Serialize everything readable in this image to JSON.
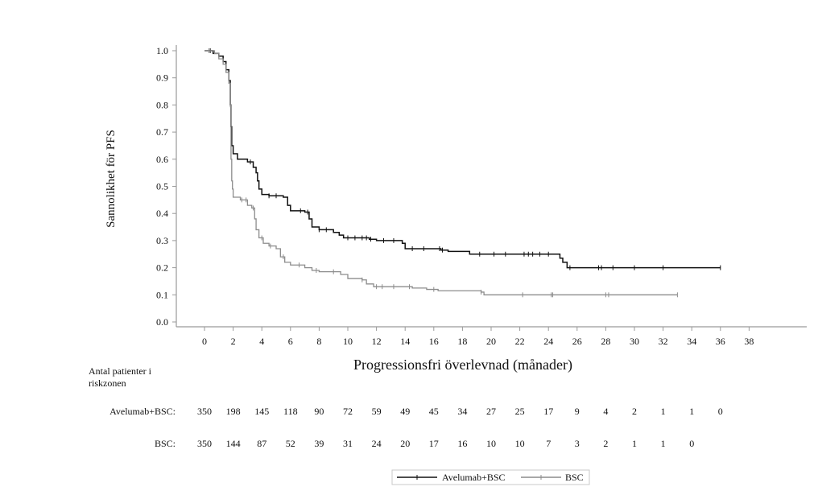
{
  "chart_data": {
    "type": "line",
    "subtype": "kaplan-meier",
    "title": "",
    "xlabel": "Progressionsfri överlevnad (månader)",
    "ylabel": "Sannolikhet för PFS",
    "xlim": [
      -2,
      42
    ],
    "ylim": [
      0,
      1.0
    ],
    "x_ticks": [
      0,
      2,
      4,
      6,
      8,
      10,
      12,
      14,
      16,
      18,
      20,
      22,
      24,
      26,
      28,
      30,
      32,
      34,
      36,
      38
    ],
    "y_ticks": [
      "0.0",
      "0.1",
      "0.2",
      "0.3",
      "0.4",
      "0.5",
      "0.6",
      "0.7",
      "0.8",
      "0.9",
      "1.0"
    ],
    "grid": false,
    "legend_position": "bottom-center",
    "series": [
      {
        "name": "Avelumab+BSC",
        "color": "#111111",
        "steps": [
          [
            0,
            1.0
          ],
          [
            0.6,
            0.99
          ],
          [
            1.0,
            0.98
          ],
          [
            1.3,
            0.96
          ],
          [
            1.5,
            0.93
          ],
          [
            1.7,
            0.89
          ],
          [
            1.8,
            0.8
          ],
          [
            1.85,
            0.72
          ],
          [
            1.9,
            0.65
          ],
          [
            2.0,
            0.62
          ],
          [
            2.3,
            0.6
          ],
          [
            3.0,
            0.59
          ],
          [
            3.4,
            0.57
          ],
          [
            3.6,
            0.55
          ],
          [
            3.7,
            0.52
          ],
          [
            3.8,
            0.49
          ],
          [
            4.0,
            0.47
          ],
          [
            4.5,
            0.465
          ],
          [
            5.5,
            0.46
          ],
          [
            5.8,
            0.43
          ],
          [
            6.0,
            0.41
          ],
          [
            7.0,
            0.405
          ],
          [
            7.3,
            0.38
          ],
          [
            7.5,
            0.35
          ],
          [
            8.0,
            0.34
          ],
          [
            9.0,
            0.33
          ],
          [
            9.4,
            0.32
          ],
          [
            9.7,
            0.31
          ],
          [
            11.5,
            0.305
          ],
          [
            12.0,
            0.3
          ],
          [
            13.8,
            0.29
          ],
          [
            14.0,
            0.27
          ],
          [
            16.5,
            0.265
          ],
          [
            17.0,
            0.26
          ],
          [
            18.5,
            0.25
          ],
          [
            24.8,
            0.235
          ],
          [
            25.0,
            0.22
          ],
          [
            25.3,
            0.2
          ],
          [
            36.0,
            0.2
          ]
        ],
        "censor_times": [
          0.4,
          3.2,
          4.5,
          5.0,
          6.7,
          7.2,
          8.0,
          8.5,
          10.0,
          10.5,
          11.0,
          11.3,
          11.6,
          12.5,
          13.2,
          14.5,
          15.3,
          16.4,
          16.6,
          19.2,
          20.2,
          21.0,
          22.3,
          22.6,
          22.9,
          23.4,
          24.0,
          25.5,
          27.5,
          27.7,
          28.5,
          30.0,
          32.0,
          36.0
        ]
      },
      {
        "name": "BSC",
        "color": "#8c8c8c",
        "steps": [
          [
            0,
            1.0
          ],
          [
            0.7,
            0.99
          ],
          [
            1.0,
            0.97
          ],
          [
            1.3,
            0.95
          ],
          [
            1.5,
            0.92
          ],
          [
            1.7,
            0.88
          ],
          [
            1.8,
            0.8
          ],
          [
            1.85,
            0.6
          ],
          [
            1.9,
            0.52
          ],
          [
            1.95,
            0.49
          ],
          [
            2.0,
            0.46
          ],
          [
            2.5,
            0.45
          ],
          [
            3.0,
            0.43
          ],
          [
            3.3,
            0.42
          ],
          [
            3.5,
            0.38
          ],
          [
            3.6,
            0.34
          ],
          [
            3.8,
            0.31
          ],
          [
            4.1,
            0.29
          ],
          [
            4.5,
            0.28
          ],
          [
            5.0,
            0.27
          ],
          [
            5.3,
            0.24
          ],
          [
            5.6,
            0.22
          ],
          [
            6.0,
            0.21
          ],
          [
            7.0,
            0.2
          ],
          [
            7.5,
            0.19
          ],
          [
            8.0,
            0.185
          ],
          [
            9.5,
            0.175
          ],
          [
            10.0,
            0.16
          ],
          [
            11.0,
            0.155
          ],
          [
            11.3,
            0.14
          ],
          [
            11.8,
            0.13
          ],
          [
            14.5,
            0.125
          ],
          [
            15.5,
            0.12
          ],
          [
            16.3,
            0.115
          ],
          [
            19.3,
            0.11
          ],
          [
            19.5,
            0.1
          ],
          [
            33.0,
            0.1
          ]
        ],
        "censor_times": [
          0.3,
          1.8,
          2.6,
          2.9,
          3.4,
          4.0,
          4.6,
          5.5,
          6.6,
          7.8,
          9.0,
          11.0,
          12.0,
          12.4,
          13.2,
          14.3,
          16.0,
          19.3,
          22.2,
          24.2,
          24.3,
          28.0,
          28.2,
          33.0
        ]
      }
    ],
    "risk_table": {
      "title_line1": "Antal patienter i",
      "title_line2": "riskzonen",
      "times": [
        0,
        2,
        4,
        6,
        8,
        10,
        12,
        14,
        16,
        18,
        20,
        22,
        24,
        26,
        28,
        30,
        32,
        34,
        36
      ],
      "rows": [
        {
          "label": "Avelumab+BSC:",
          "counts": [
            "350",
            "198",
            "145",
            "118",
            "90",
            "72",
            "59",
            "49",
            "45",
            "34",
            "27",
            "25",
            "17",
            "9",
            "4",
            "2",
            "1",
            "1",
            "0"
          ]
        },
        {
          "label": "BSC:",
          "counts": [
            "350",
            "144",
            "87",
            "52",
            "39",
            "31",
            "24",
            "20",
            "17",
            "16",
            "10",
            "10",
            "7",
            "3",
            "2",
            "1",
            "1",
            "0"
          ]
        }
      ]
    },
    "legend": [
      {
        "label": "Avelumab+BSC",
        "color": "#111111"
      },
      {
        "label": "BSC",
        "color": "#8c8c8c"
      }
    ]
  }
}
